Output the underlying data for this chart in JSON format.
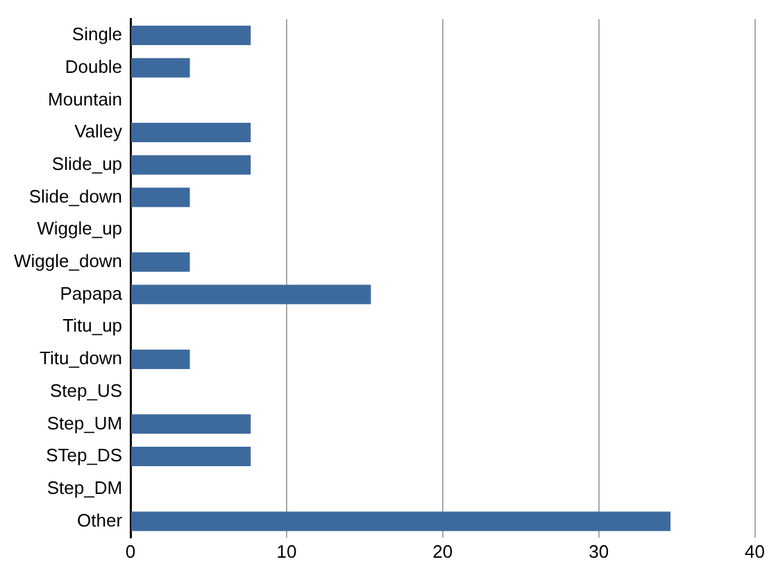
{
  "chart_data": {
    "type": "bar",
    "orientation": "horizontal",
    "categories": [
      "Single",
      "Double",
      "Mountain",
      "Valley",
      "Slide_up",
      "Slide_down",
      "Wiggle_up",
      "Wiggle_down",
      "Papapa",
      "Titu_up",
      "Titu_down",
      "Step_US",
      "Step_UM",
      "STep_DS",
      "Step_DM",
      "Other"
    ],
    "values": [
      7.7,
      3.8,
      0,
      7.7,
      7.7,
      3.8,
      0,
      3.8,
      15.4,
      0,
      3.8,
      0,
      7.7,
      7.7,
      0,
      34.6
    ],
    "color": "#3d6a9e",
    "xlim": [
      0,
      40
    ],
    "xticks": [
      0,
      10,
      20,
      30,
      40
    ],
    "grid": "x"
  }
}
